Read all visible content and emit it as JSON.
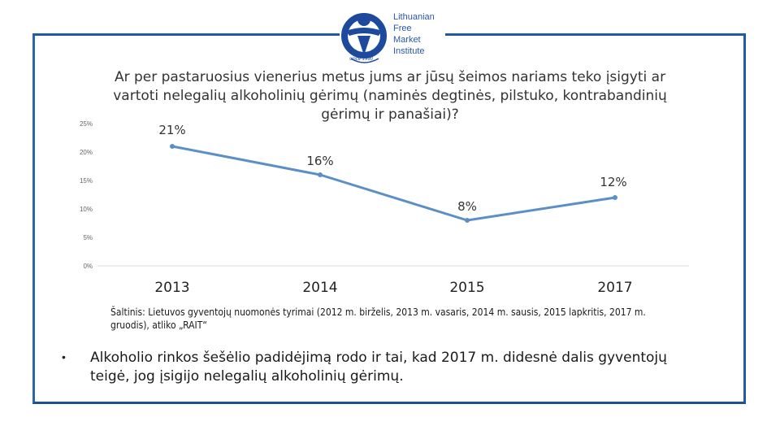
{
  "logo": {
    "lines": [
      "Lithuanian",
      "Free",
      "Market",
      "Institute"
    ],
    "tagline": "since 1990",
    "colors": {
      "primary": "#2a58a8",
      "accent": "#1d4a9c"
    }
  },
  "chart_data": {
    "type": "line",
    "title": "Ar per pastaruosius vienerius metus jums ar jūsų šeimos nariams teko įsigyti ar vartoti nelegalių alkoholinių gėrimų (naminės degtinės, pilstuko, kontrabandinių gėrimų ir panašiai)?",
    "categories": [
      "2013",
      "2014",
      "2015",
      "2017"
    ],
    "values": [
      21,
      16,
      8,
      12
    ],
    "data_labels": [
      "21%",
      "16%",
      "8%",
      "12%"
    ],
    "y_ticks": [
      "0%",
      "5%",
      "10%",
      "15%",
      "20%",
      "25%"
    ],
    "ylim": [
      0,
      25
    ],
    "xlabel": "",
    "ylabel": "",
    "grid": false,
    "series_color": "#5b8fc6"
  },
  "source_text": "Šaltinis: Lietuvos gyventojų nuomonės tyrimai (2012 m. birželis, 2013 m. vasaris, 2014 m. sausis, 2015 lapkritis, 2017 m. gruodis), atliko „RAIT“",
  "bullet_text": "Alkoholio rinkos šešėlio padidėjimą rodo ir tai, kad 2017 m. didesnė dalis gyventojų teigė, jog įsigijo nelegalių alkoholinių gėrimų."
}
